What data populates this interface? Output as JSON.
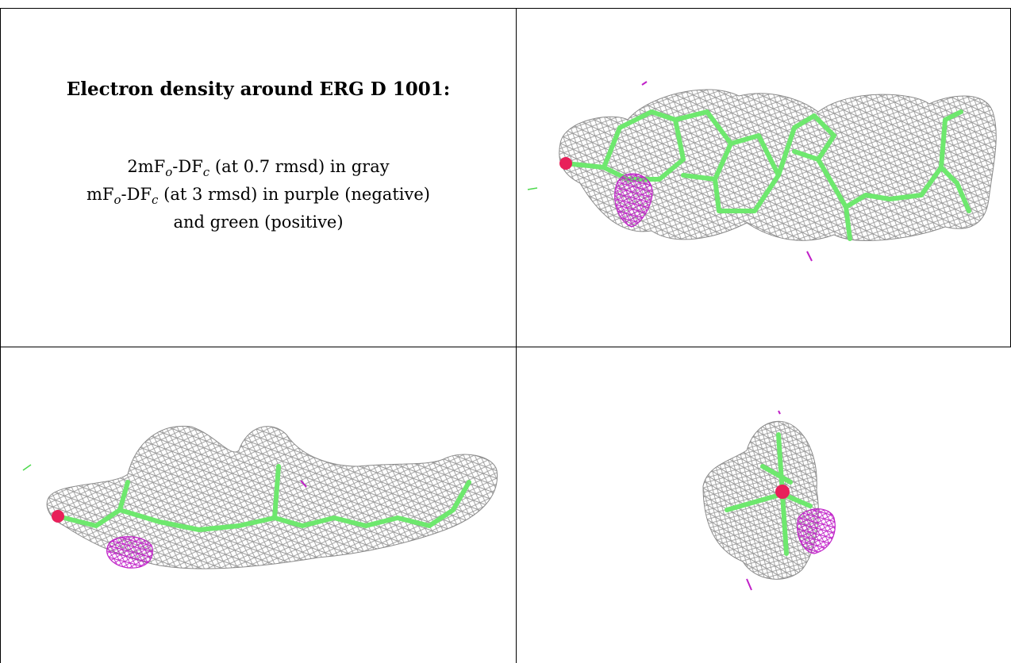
{
  "caption": {
    "title": "Electron density around ERG D 1001:",
    "line1_prefix": "2mF",
    "line1_sub1": "o",
    "line1_mid": "-DF",
    "line1_sub2": "c",
    "line1_suffix": " (at 0.7 rmsd) in gray",
    "line2_prefix": "mF",
    "line2_sub1": "o",
    "line2_mid": "-DF",
    "line2_sub2": "c",
    "line2_suffix": " (at 3 rmsd) in purple (negative)",
    "line3": "and green (positive)"
  },
  "colors": {
    "mesh_gray": "#9a9a9a",
    "difference_negative": "#c020c8",
    "difference_positive": "#4cd94c",
    "ligand_carbon": "#6ee86e",
    "oxygen": "#e8205a",
    "border": "#000000"
  },
  "panels": [
    {
      "name": "panel-top-right",
      "view": "top view of ligand ERG with density mesh"
    },
    {
      "name": "panel-bottom-left",
      "view": "side view of ligand ERG with density mesh"
    },
    {
      "name": "panel-bottom-right",
      "view": "end-on view of ligand ERG with density mesh"
    }
  ]
}
